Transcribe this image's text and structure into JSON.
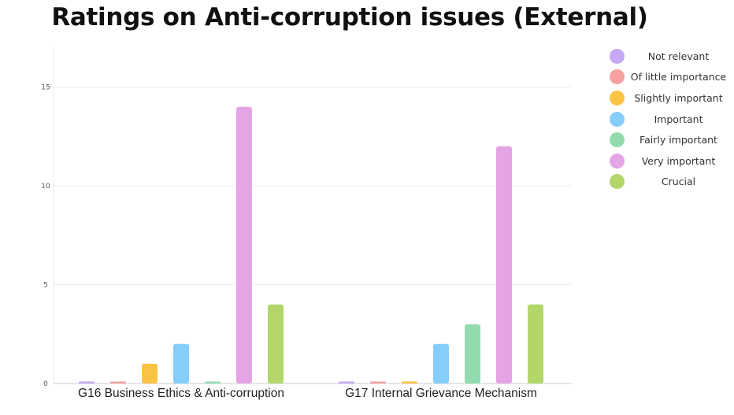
{
  "chart_data": {
    "type": "bar",
    "title": "Ratings on Anti-corruption issues (External)",
    "categories": [
      "G16 Business Ethics & Anti-corruption",
      "G17 Internal Grievance Mechanism"
    ],
    "series": [
      {
        "name": "Not relevant",
        "color": "#c6a8f7",
        "values": [
          0,
          0
        ]
      },
      {
        "name": "Of little importance",
        "color": "#f7a1a1",
        "values": [
          0,
          0
        ]
      },
      {
        "name": "Slightly important",
        "color": "#fbc343",
        "values": [
          1,
          0
        ]
      },
      {
        "name": "Important",
        "color": "#85cefb",
        "values": [
          2,
          2
        ]
      },
      {
        "name": "Fairly important",
        "color": "#92dbaf",
        "values": [
          0,
          3
        ]
      },
      {
        "name": "Very important",
        "color": "#e5a4e6",
        "values": [
          14,
          12
        ]
      },
      {
        "name": "Crucial",
        "color": "#b2d66a",
        "values": [
          4,
          4
        ]
      }
    ],
    "ylim": [
      0,
      17
    ],
    "yticks": [
      0,
      5,
      10,
      15
    ],
    "grid": true,
    "legend_position": "right"
  }
}
